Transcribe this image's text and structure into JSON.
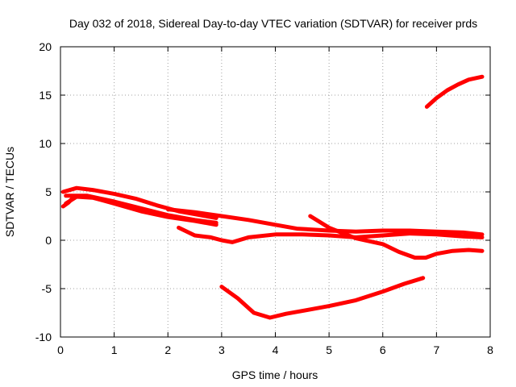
{
  "chart_data": {
    "type": "line",
    "title": "Day 032 of 2018, Sidereal Day-to-day VTEC variation (SDTVAR) for receiver prds",
    "xlabel": "GPS time / hours",
    "ylabel": "SDTVAR / TECUs",
    "xlim": [
      0,
      8
    ],
    "ylim": [
      -10,
      20
    ],
    "xticks": [
      0,
      1,
      2,
      3,
      4,
      5,
      6,
      7,
      8
    ],
    "yticks": [
      -10,
      -5,
      0,
      5,
      10,
      15,
      20
    ],
    "grid": true,
    "color": "#ff0000",
    "series": [
      {
        "x": [
          0.05,
          0.3,
          0.6,
          1.0,
          1.4,
          1.8,
          2.2,
          2.6,
          2.9
        ],
        "y": [
          5.0,
          5.4,
          5.2,
          4.8,
          4.3,
          3.6,
          3.0,
          2.6,
          2.3
        ]
      },
      {
        "x": [
          0.1,
          0.5,
          1.0,
          1.5,
          2.0,
          2.5,
          2.9
        ],
        "y": [
          4.6,
          4.6,
          4.0,
          3.3,
          2.6,
          2.1,
          1.8
        ]
      },
      {
        "x": [
          0.1,
          0.3,
          0.6,
          1.0,
          1.5,
          2.0,
          2.5,
          2.9
        ],
        "y": [
          3.8,
          4.5,
          4.4,
          3.8,
          3.0,
          2.4,
          2.0,
          1.6
        ]
      },
      {
        "x": [
          0.05,
          0.15,
          0.25
        ],
        "y": [
          3.5,
          3.9,
          4.5
        ]
      },
      {
        "x": [
          2.0,
          2.5,
          3.0,
          3.5,
          4.0,
          4.4,
          5.0,
          5.5,
          6.0,
          6.5,
          7.0,
          7.5,
          7.85
        ],
        "y": [
          3.2,
          2.9,
          2.5,
          2.1,
          1.6,
          1.2,
          1.0,
          0.9,
          1.0,
          1.0,
          0.9,
          0.8,
          0.6
        ]
      },
      {
        "x": [
          2.2,
          2.5,
          2.8,
          3.0,
          3.2,
          3.5,
          4.0,
          4.5,
          5.0,
          5.5,
          6.0,
          6.5,
          7.0,
          7.5,
          7.85
        ],
        "y": [
          1.3,
          0.5,
          0.3,
          0.0,
          -0.2,
          0.3,
          0.6,
          0.6,
          0.5,
          0.3,
          0.5,
          0.7,
          0.6,
          0.4,
          0.3
        ]
      },
      {
        "x": [
          3.0,
          3.3,
          3.6,
          3.9,
          4.2,
          4.6,
          5.0,
          5.5,
          6.0,
          6.4,
          6.75
        ],
        "y": [
          -4.8,
          -6.0,
          -7.5,
          -8.0,
          -7.6,
          -7.2,
          -6.8,
          -6.2,
          -5.3,
          -4.5,
          -3.9
        ]
      },
      {
        "x": [
          4.65,
          5.0,
          5.5,
          6.0,
          6.3,
          6.6,
          6.8,
          7.0,
          7.3,
          7.6,
          7.85
        ],
        "y": [
          2.5,
          1.3,
          0.2,
          -0.4,
          -1.2,
          -1.8,
          -1.8,
          -1.4,
          -1.1,
          -1.0,
          -1.1
        ]
      },
      {
        "x": [
          6.82,
          7.0,
          7.2,
          7.4,
          7.6,
          7.85
        ],
        "y": [
          13.8,
          14.7,
          15.5,
          16.1,
          16.6,
          16.9
        ]
      }
    ]
  }
}
